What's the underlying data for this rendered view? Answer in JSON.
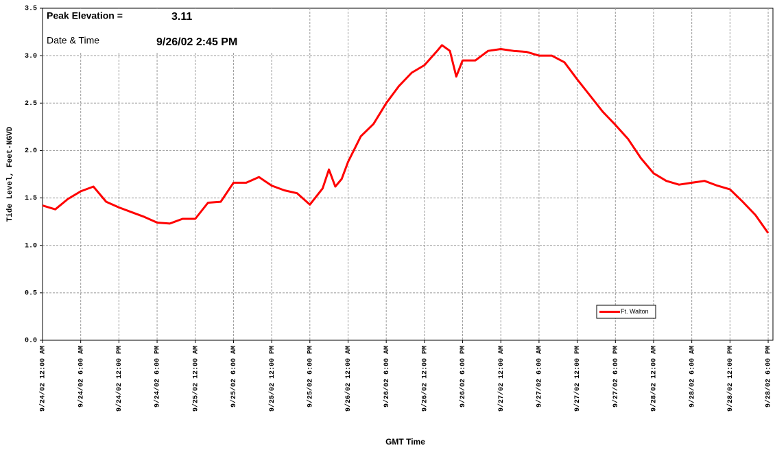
{
  "chart_data": {
    "type": "line",
    "annotations": {
      "peak_label": "Peak Elevation =",
      "peak_value": "3.11",
      "time_label": "Date & Time",
      "time_value": "9/26/02 2:45 PM"
    },
    "x_label": "GMT Time",
    "y_label": "Tide Level, Feet-NGVD",
    "x": [
      "9/24/02 12:00 AM",
      "9/24/02 2:00 AM",
      "9/24/02 4:00 AM",
      "9/24/02 6:00 AM",
      "9/24/02 8:00 AM",
      "9/24/02 10:00 AM",
      "9/24/02 12:00 PM",
      "9/24/02 2:00 PM",
      "9/24/02 4:00 PM",
      "9/24/02 6:00 PM",
      "9/24/02 8:00 PM",
      "9/24/02 10:00 PM",
      "9/25/02 12:00 AM",
      "9/25/02 2:00 AM",
      "9/25/02 4:00 AM",
      "9/25/02 6:00 AM",
      "9/25/02 8:00 AM",
      "9/25/02 10:00 AM",
      "9/25/02 12:00 PM",
      "9/25/02 2:00 PM",
      "9/25/02 4:00 PM",
      "9/25/02 6:00 PM",
      "9/25/02 8:00 PM",
      "9/25/02 9:00 PM",
      "9/25/02 10:00 PM",
      "9/25/02 11:00 PM",
      "9/26/02 12:00 AM",
      "9/26/02 2:00 AM",
      "9/26/02 4:00 AM",
      "9/26/02 6:00 AM",
      "9/26/02 8:00 AM",
      "9/26/02 10:00 AM",
      "9/26/02 12:00 PM",
      "9/26/02 2:00 PM",
      "9/26/02 2:45 PM",
      "9/26/02 4:00 PM",
      "9/26/02 5:00 PM",
      "9/26/02 6:00 PM",
      "9/26/02 8:00 PM",
      "9/26/02 10:00 PM",
      "9/27/02 12:00 AM",
      "9/27/02 2:00 AM",
      "9/27/02 4:00 AM",
      "9/27/02 6:00 AM",
      "9/27/02 8:00 AM",
      "9/27/02 10:00 AM",
      "9/27/02 12:00 PM",
      "9/27/02 2:00 PM",
      "9/27/02 4:00 PM",
      "9/27/02 6:00 PM",
      "9/27/02 8:00 PM",
      "9/27/02 10:00 PM",
      "9/28/02 12:00 AM",
      "9/28/02 2:00 AM",
      "9/28/02 4:00 AM",
      "9/28/02 6:00 AM",
      "9/28/02 8:00 AM",
      "9/28/02 10:00 AM",
      "9/28/02 12:00 PM",
      "9/28/02 2:00 PM",
      "9/28/02 4:00 PM",
      "9/28/02 6:00 PM"
    ],
    "series": [
      {
        "name": "Ft. Walton",
        "color": "#ff0000",
        "values": [
          1.42,
          1.38,
          1.49,
          1.57,
          1.62,
          1.46,
          1.4,
          1.35,
          1.3,
          1.24,
          1.23,
          1.28,
          1.28,
          1.45,
          1.46,
          1.66,
          1.66,
          1.72,
          1.63,
          1.58,
          1.55,
          1.43,
          1.6,
          1.8,
          1.62,
          1.7,
          1.88,
          2.15,
          2.28,
          2.5,
          2.68,
          2.82,
          2.9,
          3.05,
          3.11,
          3.05,
          2.78,
          2.95,
          2.95,
          3.05,
          3.07,
          3.05,
          3.04,
          3.0,
          3.0,
          2.93,
          2.75,
          2.58,
          2.41,
          2.27,
          2.12,
          1.92,
          1.76,
          1.68,
          1.64,
          1.66,
          1.68,
          1.63,
          1.59,
          1.46,
          1.32,
          1.13
        ]
      }
    ],
    "xlim": [
      "9/24/02 12:00 AM",
      "9/28/02 6:45 PM"
    ],
    "xticks": [
      "9/24/02 12:00 AM",
      "9/24/02 6:00 AM",
      "9/24/02 12:00 PM",
      "9/24/02 6:00 PM",
      "9/25/02 12:00 AM",
      "9/25/02 6:00 AM",
      "9/25/02 12:00 PM",
      "9/25/02 6:00 PM",
      "9/26/02 12:00 AM",
      "9/26/02 6:00 AM",
      "9/26/02 12:00 PM",
      "9/26/02 6:00 PM",
      "9/27/02 12:00 AM",
      "9/27/02 6:00 AM",
      "9/27/02 12:00 PM",
      "9/27/02 6:00 PM",
      "9/28/02 12:00 AM",
      "9/28/02 6:00 AM",
      "9/28/02 12:00 PM",
      "9/28/02 6:00 PM"
    ],
    "ylim": [
      0,
      3.5
    ],
    "yticks": [
      {
        "value": 0,
        "label": "0.0"
      },
      0.5,
      {
        "value": 1,
        "label": "1.0"
      },
      1.5,
      {
        "value": 2,
        "label": "2.0"
      },
      2.5,
      {
        "value": 3,
        "label": "3.0"
      },
      3.5
    ],
    "grid": true,
    "legend": "lower right"
  }
}
